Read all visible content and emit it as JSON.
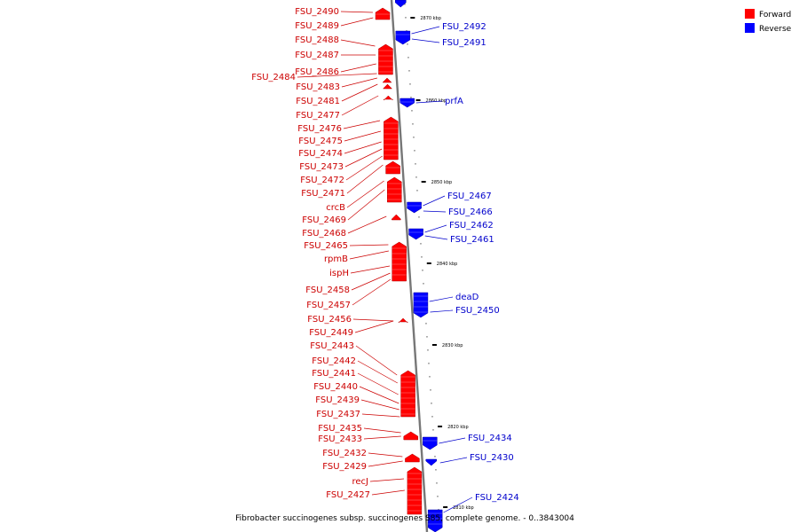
{
  "caption": "Fibrobacter succinogenes subsp. succinogenes S85, complete genome. - 0..3843004",
  "legend": [
    {
      "label": "Forward",
      "color": "#ff0000"
    },
    {
      "label": "Reverse",
      "color": "#0000ff"
    }
  ],
  "colors": {
    "forward": "#ff0000",
    "forward_label": "#cc0000",
    "reverse": "#0000ff",
    "reverse_label": "#0000cc"
  },
  "ticks": [
    "2870 kbp",
    "2860 kbp",
    "2850 kbp",
    "2840 kbp",
    "2830 kbp",
    "2820 kbp",
    "2810 kbp"
  ],
  "forward_genes": [
    "FSU_2490",
    "FSU_2489",
    "FSU_2488",
    "FSU_2487",
    "FSU_2486",
    "FSU_2484",
    "FSU_2483",
    "FSU_2481",
    "FSU_2477",
    "FSU_2476",
    "FSU_2475",
    "FSU_2474",
    "FSU_2473",
    "FSU_2472",
    "FSU_2471",
    "crcB",
    "FSU_2469",
    "FSU_2468",
    "FSU_2465",
    "rpmB",
    "ispH",
    "FSU_2458",
    "FSU_2457",
    "FSU_2456",
    "FSU_2449",
    "FSU_2443",
    "FSU_2442",
    "FSU_2441",
    "FSU_2440",
    "FSU_2439",
    "FSU_2437",
    "FSU_2435",
    "FSU_2433",
    "FSU_2432",
    "FSU_2429",
    "recJ",
    "FSU_2427"
  ],
  "reverse_genes": [
    "FSU_2492",
    "FSU_2491",
    "prfA",
    "FSU_2467",
    "FSU_2466",
    "FSU_2462",
    "FSU_2461",
    "deaD",
    "FSU_2450",
    "FSU_2434",
    "FSU_2430",
    "FSU_2424"
  ]
}
